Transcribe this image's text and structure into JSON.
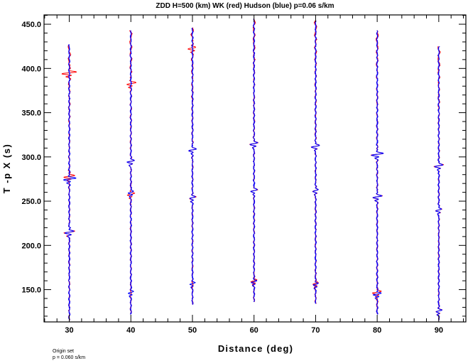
{
  "chart_data": {
    "type": "line",
    "title": "ZDD H=500 (km) WK (red) Hudson (blue) p=0.06 s/km",
    "xlabel": "Distance (deg)",
    "ylabel": "T -p X (s)",
    "xlim": [
      25.9,
      94.4
    ],
    "ylim": [
      113.5,
      460.5
    ],
    "x_ticks": [
      "30",
      "40",
      "50",
      "60",
      "70",
      "80",
      "90"
    ],
    "y_ticks": [
      "150.0",
      "200.0",
      "250.0",
      "300.0",
      "350.0",
      "400.0",
      "450.0"
    ],
    "grid": false,
    "legend": "none",
    "colors": {
      "red": "#ff0000",
      "blue": "#0000ff"
    },
    "series": [
      {
        "name": "WK (red)",
        "color": "#ff0000"
      },
      {
        "name": "Hudson (blue)",
        "color": "#0000ff"
      }
    ],
    "traces": [
      {
        "distance": 30,
        "start": 427,
        "end": 115,
        "arrivals": [
          275,
          215
        ],
        "red_arrivals": [
          395,
          278,
          215
        ],
        "red_amp": 4.0,
        "blue_amp": 3.2
      },
      {
        "distance": 40,
        "start": 443,
        "end": 122,
        "arrivals": [
          295,
          260,
          147
        ],
        "red_arrivals": [
          383,
          295,
          258
        ],
        "red_amp": 2.6,
        "blue_amp": 2.0
      },
      {
        "distance": 50,
        "start": 446,
        "end": 133,
        "arrivals": [
          308,
          254,
          157
        ],
        "red_arrivals": [
          423,
          308,
          254
        ],
        "red_amp": 2.4,
        "blue_amp": 2.0
      },
      {
        "distance": 60,
        "start": 456,
        "end": 136,
        "arrivals": [
          315,
          262,
          159
        ],
        "red_arrivals": [
          315,
          262,
          160
        ],
        "red_amp": 2.3,
        "blue_amp": 2.0
      },
      {
        "distance": 70,
        "start": 454,
        "end": 134,
        "arrivals": [
          312,
          262,
          156
        ],
        "red_arrivals": [
          312,
          262,
          157
        ],
        "red_amp": 2.0,
        "blue_amp": 2.0
      },
      {
        "distance": 80,
        "start": 443,
        "end": 122,
        "arrivals": [
          303,
          255,
          145
        ],
        "red_arrivals": [
          303,
          255,
          147
        ],
        "red_amp": 3.2,
        "blue_amp": 3.0
      },
      {
        "distance": 90,
        "start": 425,
        "end": 115,
        "arrivals": [
          290,
          240,
          126
        ],
        "red_arrivals": [
          290,
          240,
          126
        ],
        "red_amp": 2.3,
        "blue_amp": 2.0
      }
    ]
  },
  "footer": {
    "line1": "Origin set",
    "line2": "p =  0.060 s/km"
  }
}
